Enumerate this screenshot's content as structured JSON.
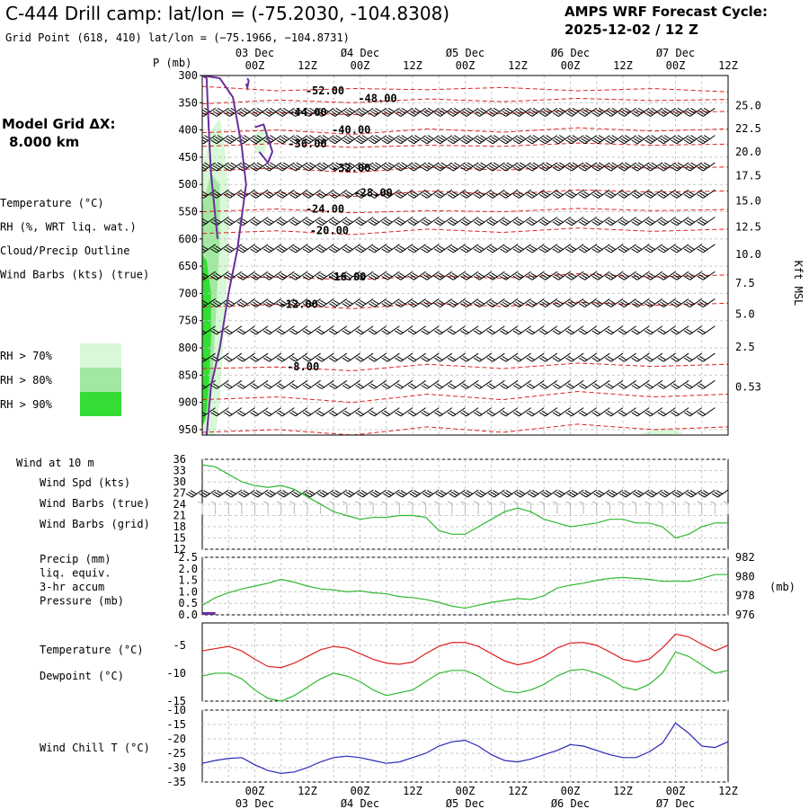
{
  "header": {
    "title": "C-444 Drill camp:  lat/lon = (-75.2030, -104.8308)",
    "subtitle": "Grid Point (618, 410) lat/lon = (−75.1966, −104.8731)",
    "cycle_label": "AMPS WRF Forecast Cycle:",
    "cycle_value": "2025-12-02 / 12  Z"
  },
  "model_grid": {
    "label": "Model Grid ΔX:",
    "value": "8.000 km"
  },
  "legend_main": [
    {
      "text": "Temperature (°C)",
      "color": "#e02020"
    },
    {
      "text": "RH (%, WRT liq. wat.)",
      "color": "#2fb82f"
    },
    {
      "text": "Cloud/Precip Outline",
      "color": "#6a2f9a"
    },
    {
      "text": "Wind Barbs (kts) (true)",
      "color": "#000000"
    }
  ],
  "rh_legend": [
    {
      "text": "RH > 70%",
      "color": "#d8f8d8"
    },
    {
      "text": "RH > 80%",
      "color": "#a2e8a2"
    },
    {
      "text": "RH > 90%",
      "color": "#33dd33"
    }
  ],
  "time_axis": {
    "hour_labels": [
      "00Z",
      "12Z",
      "00Z",
      "12Z",
      "00Z",
      "12Z",
      "00Z",
      "12Z",
      "00Z",
      "12Z"
    ],
    "hours": [
      12,
      24,
      36,
      48,
      60,
      72,
      84,
      96,
      108,
      120
    ],
    "day_labels": [
      "03 Dec",
      "Ø4 Dec",
      "Ø5 Dec",
      "Ø6 Dec",
      "Ø7 Dec"
    ],
    "day_hours": [
      12,
      36,
      60,
      84,
      108
    ],
    "range_hours": [
      0,
      120
    ]
  },
  "chart_data": [
    {
      "type": "contour",
      "name": "sounding",
      "ylabel": "P (mb)",
      "y_ticks": [
        300,
        350,
        400,
        450,
        500,
        550,
        600,
        650,
        700,
        750,
        800,
        850,
        900,
        950
      ],
      "right_ylabel": "Kft MSL",
      "right_ticks": [
        "25.0",
        "22.5",
        "20.0",
        "17.5",
        "15.0",
        "12.5",
        "10.0",
        "7.5",
        "5.0",
        "2.5",
        "0.53"
      ],
      "right_tick_pressures": [
        355,
        397,
        440,
        484,
        530,
        578,
        628,
        681,
        738,
        798,
        872
      ],
      "temperature_labels": [
        {
          "text": "-52.00",
          "hour": 28,
          "p": 328
        },
        {
          "text": "-48.00",
          "hour": 40,
          "p": 342
        },
        {
          "text": "-44.00",
          "hour": 24,
          "p": 368
        },
        {
          "text": "-40.00",
          "hour": 34,
          "p": 400
        },
        {
          "text": "-36.00",
          "hour": 24,
          "p": 425
        },
        {
          "text": "-32.00",
          "hour": 34,
          "p": 470
        },
        {
          "text": "-28.00",
          "hour": 39,
          "p": 515
        },
        {
          "text": "-24.00",
          "hour": 28,
          "p": 545
        },
        {
          "text": "-20.00",
          "hour": 29,
          "p": 585
        },
        {
          "text": "-16.00",
          "hour": 33,
          "p": 670
        },
        {
          "text": "-12.00",
          "hour": 22,
          "p": 720
        },
        {
          "text": "-8.00",
          "hour": 23,
          "p": 835
        }
      ],
      "temperature_isotherms": [
        {
          "p": [
            320,
            328,
            324,
            326,
            322,
            328,
            324,
            330
          ]
        },
        {
          "p": [
            352,
            345,
            350,
            343,
            348,
            342,
            346,
            344
          ]
        },
        {
          "p": [
            370,
            368,
            372,
            366,
            370,
            364,
            368,
            366
          ]
        },
        {
          "p": [
            405,
            400,
            408,
            398,
            404,
            396,
            402,
            398
          ]
        },
        {
          "p": [
            430,
            425,
            432,
            428,
            430,
            424,
            428,
            426
          ]
        },
        {
          "p": [
            475,
            470,
            478,
            468,
            474,
            466,
            470,
            468
          ]
        },
        {
          "p": [
            520,
            515,
            522,
            512,
            518,
            510,
            514,
            512
          ]
        },
        {
          "p": [
            550,
            545,
            552,
            548,
            550,
            544,
            548,
            546
          ]
        },
        {
          "p": [
            590,
            585,
            592,
            582,
            588,
            580,
            586,
            582
          ]
        },
        {
          "p": [
            672,
            670,
            675,
            668,
            672,
            664,
            670,
            666
          ]
        },
        {
          "p": [
            725,
            720,
            728,
            718,
            724,
            716,
            722,
            718
          ]
        },
        {
          "p": [
            838,
            835,
            842,
            830,
            838,
            828,
            834,
            830
          ]
        },
        {
          "p": [
            895,
            890,
            900,
            885,
            895,
            880,
            890,
            885
          ]
        },
        {
          "p": [
            955,
            950,
            960,
            945,
            955,
            940,
            950,
            945
          ]
        }
      ],
      "rh_regions": [
        {
          "level": 70,
          "color": "#d8f8d8",
          "points": [
            [
              0,
              470
            ],
            [
              2,
              400
            ],
            [
              4,
              380
            ],
            [
              5,
              420
            ],
            [
              6,
              520
            ],
            [
              6,
              640
            ],
            [
              5,
              760
            ],
            [
              4,
              900
            ],
            [
              3,
              960
            ],
            [
              0,
              960
            ]
          ]
        },
        {
          "level": 70,
          "color": "#d8f8d8",
          "points": [
            [
              12,
              410
            ],
            [
              14,
              395
            ],
            [
              15,
              420
            ],
            [
              14,
              445
            ],
            [
              12,
              440
            ]
          ]
        },
        {
          "level": 70,
          "color": "#d8f8d8",
          "points": [
            [
              100,
              958
            ],
            [
              104,
              948
            ],
            [
              108,
              950
            ],
            [
              110,
              958
            ],
            [
              104,
              960
            ]
          ]
        },
        {
          "level": 80,
          "color": "#a2e8a2",
          "points": [
            [
              0,
              540
            ],
            [
              2,
              480
            ],
            [
              4,
              500
            ],
            [
              4,
              600
            ],
            [
              3,
              760
            ],
            [
              2,
              900
            ],
            [
              0,
              940
            ]
          ]
        },
        {
          "level": 90,
          "color": "#33dd33",
          "points": [
            [
              0,
              630
            ],
            [
              1,
              640
            ],
            [
              2,
              700
            ],
            [
              2,
              780
            ],
            [
              1.5,
              870
            ],
            [
              0.8,
              930
            ],
            [
              0,
              945
            ]
          ]
        }
      ],
      "cloud_outline": [
        {
          "points": [
            [
              0,
              300
            ],
            [
              4,
              305
            ],
            [
              7,
              340
            ],
            [
              9,
              430
            ],
            [
              10,
              500
            ],
            [
              9,
              560
            ],
            [
              8,
              620
            ],
            [
              6,
              700
            ],
            [
              4,
              800
            ],
            [
              2,
              870
            ],
            [
              1,
              960
            ]
          ]
        },
        {
          "points": [
            [
              0,
              300
            ],
            [
              1,
              305
            ],
            [
              1.5,
              400
            ],
            [
              2,
              480
            ],
            [
              3,
              560
            ],
            [
              3.5,
              600
            ]
          ]
        },
        {
          "points": [
            [
              12,
              395
            ],
            [
              14,
              390
            ],
            [
              16,
              440
            ],
            [
              15,
              460
            ],
            [
              13,
              440
            ]
          ]
        },
        {
          "points": [
            [
              10,
              315
            ],
            [
              10.3,
              322
            ],
            [
              10.6,
              310
            ],
            [
              10.3,
              305
            ]
          ]
        }
      ],
      "wind_barbs": {
        "from": "upper-left (NW)",
        "cols_every_hours": 3,
        "levels": [
          300,
          350,
          400,
          450,
          500,
          550,
          600,
          650,
          700,
          750,
          800,
          850,
          900,
          950
        ]
      }
    },
    {
      "type": "line",
      "name": "wind-10m",
      "panel_label": "Wind at 10 m",
      "legend": [
        {
          "text": "Wind Spd (kts)",
          "color": "#2fb82f"
        },
        {
          "text": "Wind Barbs (true)",
          "color": "#000000"
        },
        {
          "text": "Wind Barbs (grid)",
          "color": "#b8b8b8"
        }
      ],
      "y_ticks": [
        12,
        15,
        18,
        21,
        24,
        27,
        30,
        33,
        36
      ],
      "ylim": [
        12,
        36
      ],
      "x": [
        0,
        3,
        6,
        9,
        12,
        15,
        18,
        21,
        24,
        27,
        30,
        33,
        36,
        39,
        42,
        45,
        48,
        51,
        54,
        57,
        60,
        63,
        66,
        69,
        72,
        75,
        78,
        81,
        84,
        87,
        90,
        93,
        96,
        99,
        102,
        105,
        108,
        111,
        114,
        117,
        120
      ],
      "values": [
        34.5,
        34,
        32,
        30,
        29,
        28.5,
        29,
        28,
        26,
        24,
        22,
        21,
        20,
        20.5,
        20.5,
        21,
        21,
        20.5,
        17,
        16,
        16,
        18,
        20,
        22,
        23,
        22,
        20,
        19,
        18,
        18.5,
        19,
        20,
        20,
        19,
        19,
        18,
        15,
        16,
        18,
        19,
        19
      ]
    },
    {
      "type": "line",
      "name": "precip-pressure",
      "legend": [
        {
          "text": "Precip (mm)",
          "color": "#6a2f9a"
        },
        {
          "text": "liq. equiv.",
          "color": "#6a2f9a"
        },
        {
          "text": "3-hr accum",
          "color": "#6a2f9a"
        },
        {
          "text": "Pressure (mb)",
          "color": "#2fb82f"
        }
      ],
      "precip_ticks": [
        "2.5",
        "2.0",
        "1.5",
        "1.0",
        "0.5",
        "0.0"
      ],
      "precip_ylim": [
        0,
        2.5
      ],
      "pressure_ticks": [
        976,
        978,
        980,
        982
      ],
      "pressure_ylim": [
        976,
        982
      ],
      "right_unit": "(mb)",
      "precip_bars": [
        {
          "hour": 0,
          "width_hours": 3,
          "value": 0.12
        }
      ],
      "x": [
        0,
        3,
        6,
        9,
        12,
        15,
        18,
        21,
        24,
        27,
        30,
        33,
        36,
        39,
        42,
        45,
        48,
        51,
        54,
        57,
        60,
        63,
        66,
        69,
        72,
        75,
        78,
        81,
        84,
        87,
        90,
        93,
        96,
        99,
        102,
        105,
        108,
        111,
        114,
        117,
        120
      ],
      "values": [
        977,
        977.8,
        978.3,
        978.7,
        979,
        979.3,
        979.7,
        979.4,
        979,
        978.7,
        978.6,
        978.4,
        978.5,
        978.3,
        978.2,
        977.9,
        977.8,
        977.6,
        977.3,
        976.9,
        976.7,
        977,
        977.3,
        977.5,
        977.7,
        977.6,
        978,
        978.8,
        979.1,
        979.3,
        979.6,
        979.8,
        979.9,
        979.8,
        979.7,
        979.5,
        979.5,
        979.5,
        979.8,
        980.2,
        980.2
      ]
    },
    {
      "type": "line",
      "name": "temperature-dewpoint",
      "legend": [
        {
          "text": "Temperature (°C)",
          "color": "#e02020"
        },
        {
          "text": "Dewpoint (°C)",
          "color": "#2fb82f"
        }
      ],
      "y_ticks": [
        -5,
        -10,
        -15
      ],
      "ylim": [
        -15,
        -1
      ],
      "x": [
        0,
        3,
        6,
        9,
        12,
        15,
        18,
        21,
        24,
        27,
        30,
        33,
        36,
        39,
        42,
        45,
        48,
        51,
        54,
        57,
        60,
        63,
        66,
        69,
        72,
        75,
        78,
        81,
        84,
        87,
        90,
        93,
        96,
        99,
        102,
        105,
        108,
        111,
        114,
        117,
        120
      ],
      "series": [
        {
          "name": "Temperature (°C)",
          "values": [
            -6,
            -5.6,
            -5.2,
            -6,
            -7.5,
            -8.8,
            -9,
            -8.2,
            -7,
            -5.8,
            -5.2,
            -5.5,
            -6.5,
            -7.5,
            -8.2,
            -8.4,
            -8,
            -6.5,
            -5.2,
            -4.5,
            -4.5,
            -5.2,
            -6.5,
            -7.8,
            -8.5,
            -8,
            -7,
            -5.5,
            -4.6,
            -4.5,
            -5,
            -6.2,
            -7.5,
            -8,
            -7.5,
            -5.5,
            -3,
            -3.5,
            -4.8,
            -6,
            -5
          ]
        },
        {
          "name": "Dewpoint (°C)",
          "values": [
            -10.5,
            -10,
            -10,
            -11,
            -13,
            -14.5,
            -15,
            -14,
            -12.5,
            -11,
            -10,
            -10.5,
            -11.5,
            -13,
            -14,
            -13.5,
            -13,
            -11.5,
            -10,
            -9.5,
            -9.5,
            -10.5,
            -12,
            -13.2,
            -13.5,
            -13,
            -12,
            -10.5,
            -9.5,
            -9.3,
            -10,
            -11,
            -12.5,
            -13,
            -12,
            -10,
            -6.2,
            -7,
            -8.5,
            -10,
            -9.5
          ]
        }
      ]
    },
    {
      "type": "line",
      "name": "wind-chill",
      "legend": [
        {
          "text": "Wind Chill T (°C)",
          "color": "#2828b8"
        }
      ],
      "y_ticks": [
        -10,
        -15,
        -20,
        -25,
        -30,
        -35
      ],
      "ylim": [
        -35,
        -10
      ],
      "x": [
        0,
        3,
        6,
        9,
        12,
        15,
        18,
        21,
        24,
        27,
        30,
        33,
        36,
        39,
        42,
        45,
        48,
        51,
        54,
        57,
        60,
        63,
        66,
        69,
        72,
        75,
        78,
        81,
        84,
        87,
        90,
        93,
        96,
        99,
        102,
        105,
        108,
        111,
        114,
        117,
        120
      ],
      "values": [
        -28.5,
        -27.5,
        -26.8,
        -26.5,
        -29,
        -31,
        -32,
        -31.5,
        -30,
        -28,
        -26.5,
        -26,
        -26.5,
        -27.5,
        -28.5,
        -28,
        -26.5,
        -25,
        -22.5,
        -21,
        -20.5,
        -22.5,
        -25.5,
        -27.5,
        -28,
        -27,
        -25.5,
        -24,
        -22,
        -22.5,
        -24,
        -25.5,
        -26.5,
        -26.5,
        -24.5,
        -21.5,
        -14.5,
        -18,
        -22.5,
        -23,
        -21
      ]
    }
  ]
}
